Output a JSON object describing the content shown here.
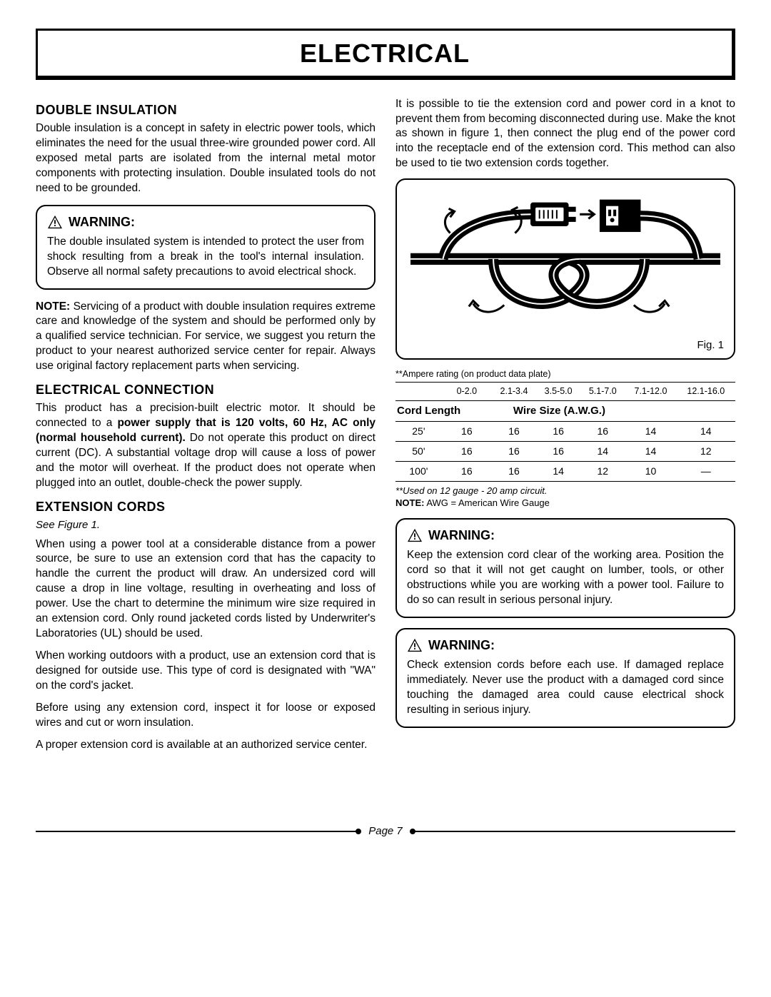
{
  "title": "ELECTRICAL",
  "left": {
    "h_double": "DOUBLE INSULATION",
    "p_double": "Double insulation is a concept in safety in electric power tools, which eliminates the need for the usual three-wire grounded power cord. All exposed metal parts are isolated from the internal metal motor components with protecting insulation. Double insulated tools do not need to be grounded.",
    "warn1_head": "WARNING:",
    "warn1_body": "The double insulated system is intended to protect the user from shock resulting from a break in the tool's internal insulation. Observe all normal safety precautions to avoid electrical shock.",
    "note_lead": "NOTE:",
    "note_body": " Servicing of a product with double insulation requires extreme care and knowledge of the system and should be performed only by a qualified service technician. For service, we suggest you return the product to your nearest authorized service center for repair. Always use original factory replacement parts when servicing.",
    "h_elec": "ELECTRICAL CONNECTION",
    "p_elec_a": "This product has a precision-built electric motor. It should be connected to a ",
    "p_elec_bold": "power supply that is 120 volts, 60 Hz, AC only (normal household current).",
    "p_elec_b": " Do not operate this product on direct current (DC). A substantial voltage drop will cause a loss of power and the motor will overheat. If the product does not operate when plugged into an outlet, double-check the power supply.",
    "h_ext": "EXTENSION CORDS",
    "see_fig": "See Figure 1.",
    "p_ext1": "When using a power tool at a considerable distance from a power source, be sure to use an extension cord that has the capacity to handle the current the product will draw. An undersized cord will cause a drop in line voltage, resulting in overheating and loss of power. Use the chart to determine the minimum wire size required in an extension cord. Only round jacketed cords listed by Underwriter's Laboratories (UL) should be used.",
    "p_ext2": "When working outdoors with a product, use an extension cord that is designed for outside use. This type of cord is designated with \"WA\" on the cord's jacket.",
    "p_ext3": "Before using any extension cord, inspect it for loose or exposed wires and cut or worn insulation.",
    "p_ext4": "A proper extension cord is available at an authorized service center."
  },
  "right": {
    "p_top": "It is possible to tie the extension cord and power cord in a knot to prevent them from becoming disconnected during use. Make the knot as shown in figure 1, then connect the plug end of the power cord into the receptacle end of the extension cord. This method can also be used to tie two extension cords together.",
    "fig_label": "Fig. 1",
    "amp_note": "**Ampere rating (on product data plate)",
    "amp_ranges": [
      "0-2.0",
      "2.1-3.4",
      "3.5-5.0",
      "5.1-7.0",
      "7.1-12.0",
      "12.1-16.0"
    ],
    "hdr_cord": "Cord Length",
    "hdr_wire": "Wire Size (A.W.G.)",
    "rows": [
      {
        "len": "25'",
        "v": [
          "16",
          "16",
          "16",
          "16",
          "14",
          "14"
        ]
      },
      {
        "len": "50'",
        "v": [
          "16",
          "16",
          "16",
          "14",
          "14",
          "12"
        ]
      },
      {
        "len": "100'",
        "v": [
          "16",
          "16",
          "14",
          "12",
          "10",
          "—"
        ]
      }
    ],
    "foot1": "**Used on 12 gauge - 20 amp circuit.",
    "foot2_lead": "NOTE:",
    "foot2_body": " AWG = American Wire Gauge",
    "warn2_head": "WARNING:",
    "warn2_body": "Keep the extension cord clear of the working area. Position the cord so that it will not get caught on lumber, tools, or other obstructions while you are working with a power tool. Failure to do so can result in serious personal injury.",
    "warn3_head": "WARNING:",
    "warn3_body": "Check extension cords before each use. If damaged replace immediately. Never use the product with a damaged cord since touching the damaged area could cause electrical shock resulting in serious injury."
  },
  "page": "Page 7"
}
